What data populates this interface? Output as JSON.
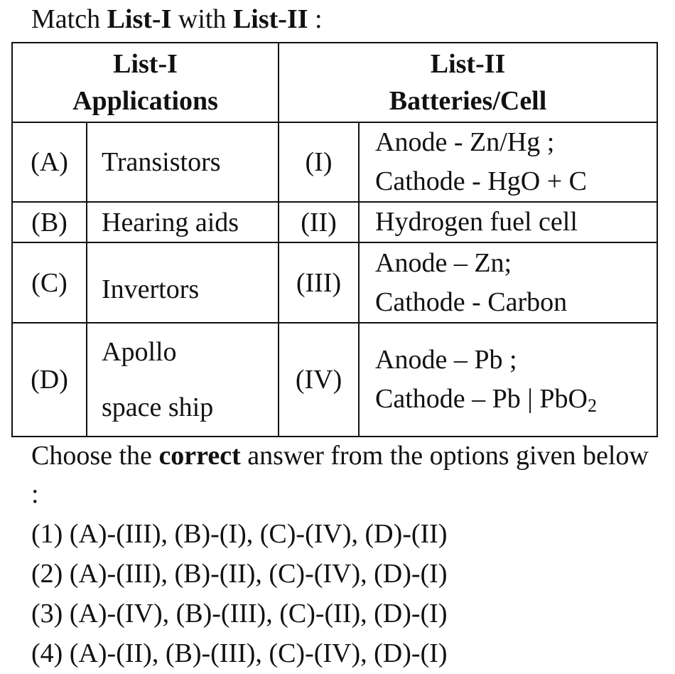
{
  "question": {
    "prefix": "Match ",
    "list1": "List-I",
    "middle": " with ",
    "list2": "List-II",
    "suffix": " :"
  },
  "table": {
    "header_left": {
      "line1": "List-I",
      "line2": "Applications"
    },
    "header_right": {
      "line1": "List-II",
      "line2": "Batteries/Cell"
    },
    "rows": [
      {
        "label": "(A)",
        "application": "Transistors",
        "roman": "(I)",
        "cell_line1": "Anode - Zn/Hg ;",
        "cell_line2": "Cathode - HgO + C"
      },
      {
        "label": "(B)",
        "application": "Hearing aids",
        "roman": "(II)",
        "cell_line1": "Hydrogen fuel cell"
      },
      {
        "label": "(C)",
        "application": "Invertors",
        "roman": "(III)",
        "cell_line1": "Anode – Zn;",
        "cell_line2": "Cathode - Carbon"
      },
      {
        "label": "(D)",
        "application_line1": "Apollo",
        "application_line2": "space ship",
        "roman": "(IV)",
        "cell_line1": "Anode – Pb ;",
        "cell_line2_main": "Cathode – Pb | PbO",
        "cell_line2_sub": "2"
      }
    ]
  },
  "instruction": {
    "before": "Choose the ",
    "bold": "correct",
    "after": " answer from the options given below :"
  },
  "options": [
    "(1) (A)-(III), (B)-(I), (C)-(IV), (D)-(II)",
    "(2) (A)-(III), (B)-(II), (C)-(IV), (D)-(I)",
    "(3) (A)-(IV), (B)-(III), (C)-(II), (D)-(I)",
    "(4) (A)-(II), (B)-(III), (C)-(IV), (D)-(I)"
  ]
}
